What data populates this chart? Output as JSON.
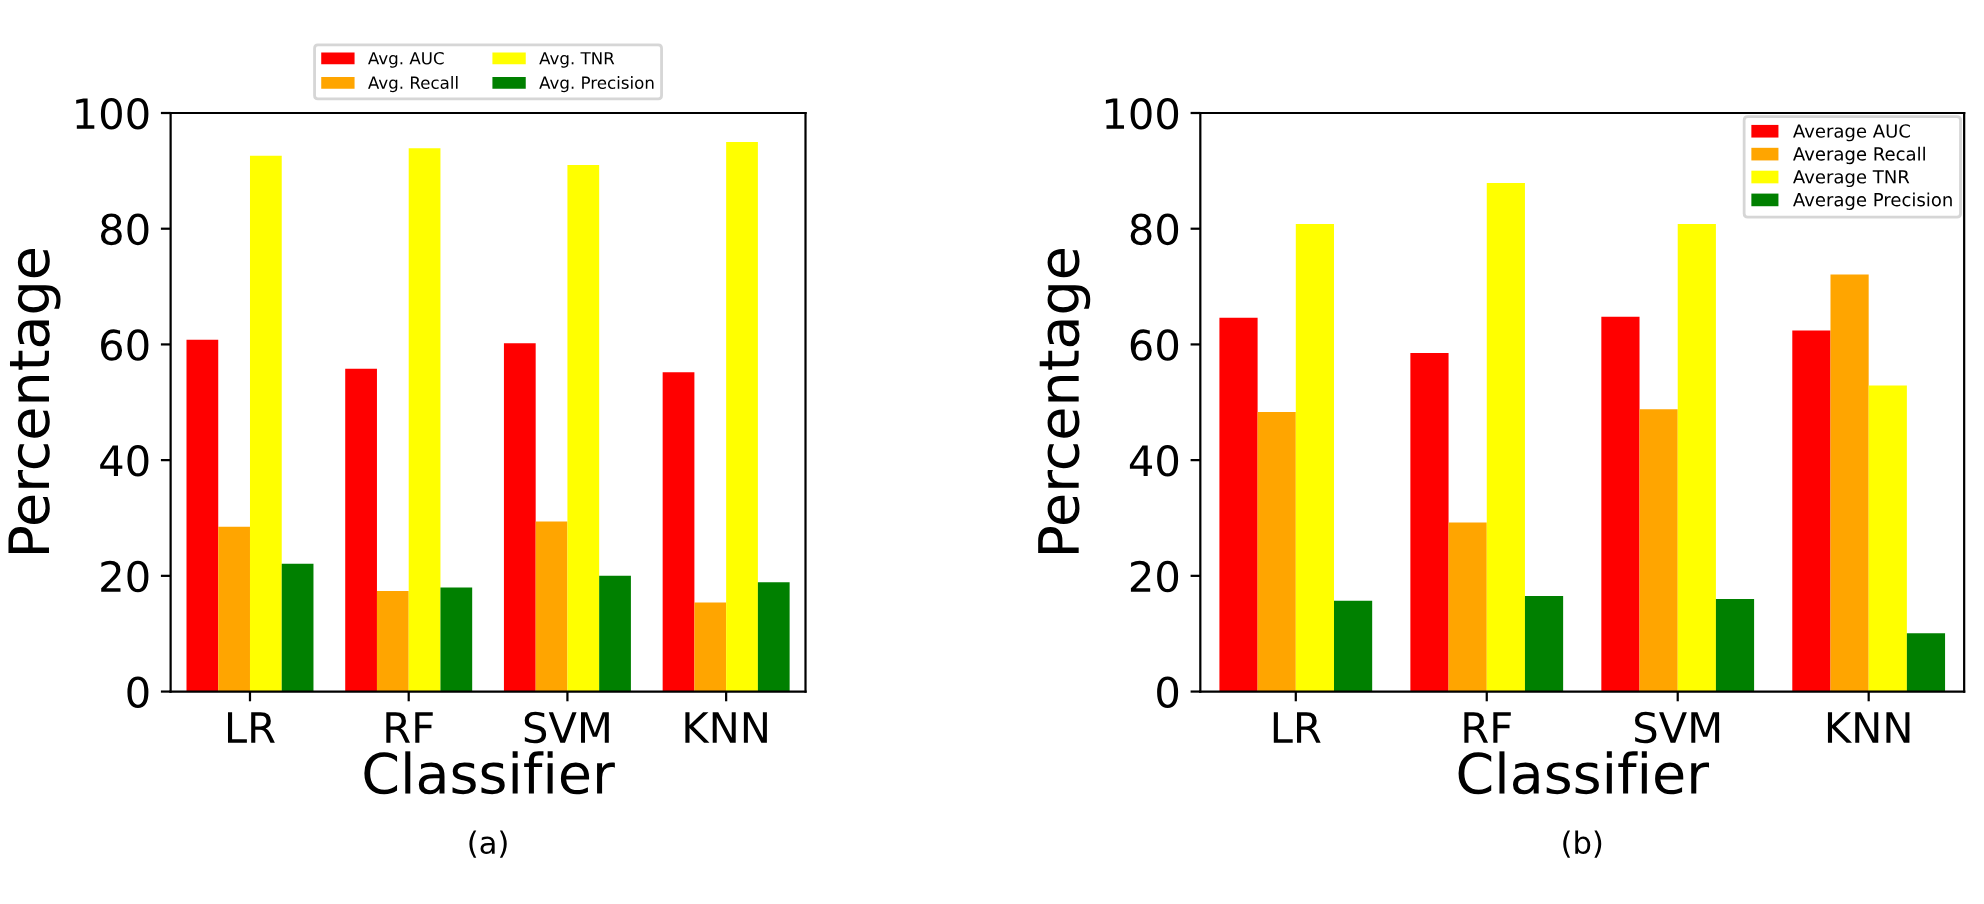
{
  "chart_data": [
    {
      "type": "bar",
      "categories": [
        "LR",
        "RF",
        "SVM",
        "KNN"
      ],
      "xlabel": "Classifier",
      "ylabel": "Percentage",
      "ylim": [
        0,
        100
      ],
      "yticks": [
        0,
        20,
        40,
        60,
        80,
        100
      ],
      "grid": false,
      "legend": "top",
      "annotations": [
        "(a)"
      ],
      "series": [
        {
          "name": "Avg. AUC",
          "color": "#ff0000",
          "values": [
            60.8,
            55.8,
            60.2,
            55.2
          ]
        },
        {
          "name": "Avg. Recall",
          "color": "#ffa500",
          "values": [
            28.5,
            17.4,
            29.4,
            15.4
          ]
        },
        {
          "name": "Avg. TNR",
          "color": "#ffff00",
          "values": [
            92.6,
            93.9,
            91,
            95
          ]
        },
        {
          "name": "Avg. Precision",
          "color": "#008000",
          "values": [
            22.1,
            18,
            20,
            18.9
          ]
        }
      ]
    },
    {
      "type": "bar",
      "categories": [
        "LR",
        "RF",
        "SVM",
        "KNN"
      ],
      "xlabel": "Classifier",
      "ylabel": "Percentage",
      "ylim": [
        0,
        100
      ],
      "yticks": [
        0,
        20,
        40,
        60,
        80,
        100
      ],
      "grid": false,
      "legend": "top right",
      "annotations": [
        "(b)"
      ],
      "series": [
        {
          "name": "Average AUC",
          "color": "#ff0000",
          "values": [
            64.6,
            58.5,
            64.8,
            62.4
          ]
        },
        {
          "name": "Average Recall",
          "color": "#ffa500",
          "values": [
            48.3,
            29.2,
            48.8,
            72.1
          ]
        },
        {
          "name": "Average TNR",
          "color": "#ffff00",
          "values": [
            80.8,
            87.9,
            80.8,
            52.9
          ]
        },
        {
          "name": "Average Precision",
          "color": "#008000",
          "values": [
            15.7,
            16.5,
            16,
            10.1
          ]
        }
      ]
    }
  ]
}
